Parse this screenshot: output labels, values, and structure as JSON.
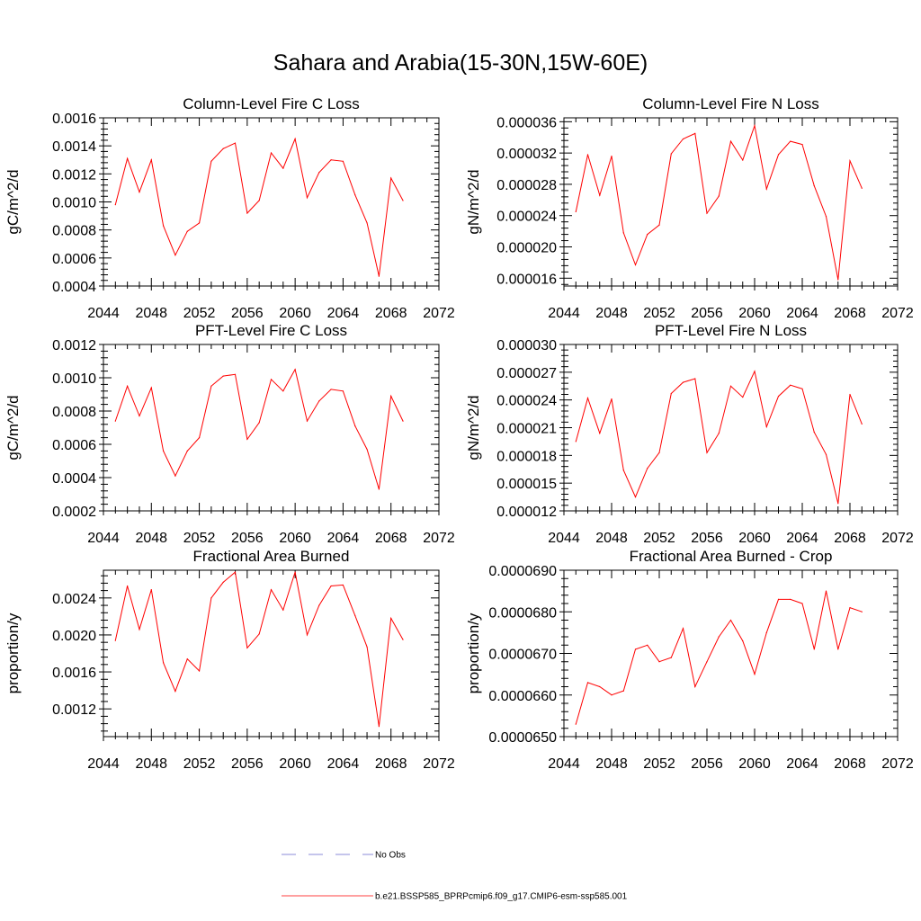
{
  "title": "Sahara and Arabia(15-30N,15W-60E)",
  "legend": {
    "entries": [
      {
        "label": "No Obs",
        "color": "#6666cc",
        "style": "dashed"
      },
      {
        "label": "b.e21.BSSP585_BPRPcmip6.f09_g17.CMIP6-esm-ssp585.001",
        "color": "#ff0000",
        "style": "solid"
      }
    ]
  },
  "chart_data": [
    {
      "type": "line",
      "title": "Column-Level Fire C Loss",
      "ylabel": "gC/m^2/d",
      "xlim": [
        2044,
        2072
      ],
      "ylim": [
        0.0004,
        0.0016
      ],
      "xticks": [
        2044,
        2048,
        2052,
        2056,
        2060,
        2064,
        2068,
        2072
      ],
      "yticks": [
        "0.0004",
        "0.0006",
        "0.0008",
        "0.0010",
        "0.0012",
        "0.0014",
        "0.0016"
      ],
      "series": [
        {
          "name": "b.e21.BSSP585_BPRPcmip6.f09_g17.CMIP6-esm-ssp585.001",
          "color": "#ff0000",
          "x": [
            2045,
            2046,
            2047,
            2048,
            2049,
            2050,
            2051,
            2052,
            2053,
            2054,
            2055,
            2056,
            2057,
            2058,
            2059,
            2060,
            2061,
            2062,
            2063,
            2064,
            2065,
            2066,
            2067,
            2068,
            2069
          ],
          "y": [
            0.00098,
            0.00131,
            0.00107,
            0.0013,
            0.00083,
            0.00062,
            0.00079,
            0.00085,
            0.00129,
            0.00138,
            0.00142,
            0.00092,
            0.00101,
            0.00135,
            0.00124,
            0.00145,
            0.00103,
            0.00121,
            0.0013,
            0.00129,
            0.00105,
            0.00085,
            0.00047,
            0.00117,
            0.00101
          ]
        }
      ]
    },
    {
      "type": "line",
      "title": "Column-Level Fire N Loss",
      "ylabel": "gN/m^2/d",
      "xlim": [
        2044,
        2072
      ],
      "ylim": [
        1.5e-05,
        3.65e-05
      ],
      "xticks": [
        2044,
        2048,
        2052,
        2056,
        2060,
        2064,
        2068,
        2072
      ],
      "yticks": [
        "0.000016",
        "0.000020",
        "0.000024",
        "0.000028",
        "0.000032",
        "0.000036"
      ],
      "series": [
        {
          "name": "b.e21.BSSP585_BPRPcmip6.f09_g17.CMIP6-esm-ssp585.001",
          "color": "#ff0000",
          "x": [
            2045,
            2046,
            2047,
            2048,
            2049,
            2050,
            2051,
            2052,
            2053,
            2054,
            2055,
            2056,
            2057,
            2058,
            2059,
            2060,
            2061,
            2062,
            2063,
            2064,
            2065,
            2066,
            2067,
            2068,
            2069
          ],
          "y": [
            2.45e-05,
            3.18e-05,
            2.66e-05,
            3.16e-05,
            2.18e-05,
            1.77e-05,
            2.16e-05,
            2.28e-05,
            3.19e-05,
            3.38e-05,
            3.45e-05,
            2.43e-05,
            2.65e-05,
            3.35e-05,
            3.11e-05,
            3.55e-05,
            2.74e-05,
            3.18e-05,
            3.35e-05,
            3.31e-05,
            2.78e-05,
            2.39e-05,
            1.58e-05,
            3.1e-05,
            2.75e-05
          ]
        }
      ]
    },
    {
      "type": "line",
      "title": "PFT-Level Fire C Loss",
      "ylabel": "gC/m^2/d",
      "xlim": [
        2044,
        2072
      ],
      "ylim": [
        0.0002,
        0.0012
      ],
      "xticks": [
        2044,
        2048,
        2052,
        2056,
        2060,
        2064,
        2068,
        2072
      ],
      "yticks": [
        "0.0002",
        "0.0004",
        "0.0006",
        "0.0008",
        "0.0010",
        "0.0012"
      ],
      "series": [
        {
          "name": "b.e21.BSSP585_BPRPcmip6.f09_g17.CMIP6-esm-ssp585.001",
          "color": "#ff0000",
          "x": [
            2045,
            2046,
            2047,
            2048,
            2049,
            2050,
            2051,
            2052,
            2053,
            2054,
            2055,
            2056,
            2057,
            2058,
            2059,
            2060,
            2061,
            2062,
            2063,
            2064,
            2065,
            2066,
            2067,
            2068,
            2069
          ],
          "y": [
            0.00074,
            0.00095,
            0.00077,
            0.00094,
            0.00056,
            0.00041,
            0.00056,
            0.00064,
            0.00095,
            0.00101,
            0.00102,
            0.00063,
            0.00073,
            0.00099,
            0.00092,
            0.00105,
            0.00074,
            0.00086,
            0.00093,
            0.00092,
            0.00071,
            0.00057,
            0.00033,
            0.00089,
            0.00074
          ]
        }
      ]
    },
    {
      "type": "line",
      "title": "PFT-Level Fire N Loss",
      "ylabel": "gN/m^2/d",
      "xlim": [
        2044,
        2072
      ],
      "ylim": [
        1.2e-05,
        3e-05
      ],
      "xticks": [
        2044,
        2048,
        2052,
        2056,
        2060,
        2064,
        2068,
        2072
      ],
      "yticks": [
        "0.000012",
        "0.000015",
        "0.000018",
        "0.000021",
        "0.000024",
        "0.000027",
        "0.000030"
      ],
      "series": [
        {
          "name": "b.e21.BSSP585_BPRPcmip6.f09_g17.CMIP6-esm-ssp585.001",
          "color": "#ff0000",
          "x": [
            2045,
            2046,
            2047,
            2048,
            2049,
            2050,
            2051,
            2052,
            2053,
            2054,
            2055,
            2056,
            2057,
            2058,
            2059,
            2060,
            2061,
            2062,
            2063,
            2064,
            2065,
            2066,
            2067,
            2068,
            2069
          ],
          "y": [
            1.95e-05,
            2.42e-05,
            2.04e-05,
            2.41e-05,
            1.64e-05,
            1.35e-05,
            1.66e-05,
            1.83e-05,
            2.47e-05,
            2.59e-05,
            2.63e-05,
            1.83e-05,
            2.04e-05,
            2.55e-05,
            2.43e-05,
            2.71e-05,
            2.11e-05,
            2.44e-05,
            2.56e-05,
            2.52e-05,
            2.05e-05,
            1.81e-05,
            1.28e-05,
            2.46e-05,
            2.14e-05
          ]
        }
      ]
    },
    {
      "type": "line",
      "title": "Fractional Area Burned",
      "ylabel": "proportion/y",
      "xlim": [
        2044,
        2072
      ],
      "ylim": [
        0.0009,
        0.0027
      ],
      "xticks": [
        2044,
        2048,
        2052,
        2056,
        2060,
        2064,
        2068,
        2072
      ],
      "yticks": [
        "0.0012",
        "0.0016",
        "0.0020",
        "0.0024"
      ],
      "series": [
        {
          "name": "b.e21.BSSP585_BPRPcmip6.f09_g17.CMIP6-esm-ssp585.001",
          "color": "#ff0000",
          "x": [
            2045,
            2046,
            2047,
            2048,
            2049,
            2050,
            2051,
            2052,
            2053,
            2054,
            2055,
            2056,
            2057,
            2058,
            2059,
            2060,
            2061,
            2062,
            2063,
            2064,
            2065,
            2066,
            2067,
            2068,
            2069
          ],
          "y": [
            0.00194,
            0.00253,
            0.00206,
            0.00249,
            0.0017,
            0.00139,
            0.00174,
            0.00161,
            0.0024,
            0.00257,
            0.00268,
            0.00186,
            0.00201,
            0.00249,
            0.00227,
            0.00268,
            0.002,
            0.00232,
            0.00253,
            0.00254,
            0.00221,
            0.00187,
            0.00101,
            0.00218,
            0.00195
          ]
        }
      ]
    },
    {
      "type": "line",
      "title": "Fractional Area Burned - Crop",
      "ylabel": "proportion/y",
      "xlim": [
        2044,
        2072
      ],
      "ylim": [
        6.5e-05,
        6.9e-05
      ],
      "xticks": [
        2044,
        2048,
        2052,
        2056,
        2060,
        2064,
        2068,
        2072
      ],
      "yticks": [
        "0.0000650",
        "0.0000660",
        "0.0000670",
        "0.0000680",
        "0.0000690"
      ],
      "series": [
        {
          "name": "b.e21.BSSP585_BPRPcmip6.f09_g17.CMIP6-esm-ssp585.001",
          "color": "#ff0000",
          "x": [
            2045,
            2046,
            2047,
            2048,
            2049,
            2050,
            2051,
            2052,
            2053,
            2054,
            2055,
            2056,
            2057,
            2058,
            2059,
            2060,
            2061,
            2062,
            2063,
            2064,
            2065,
            2066,
            2067,
            2068,
            2069
          ],
          "y": [
            6.53e-05,
            6.63e-05,
            6.62e-05,
            6.6e-05,
            6.61e-05,
            6.71e-05,
            6.72e-05,
            6.68e-05,
            6.69e-05,
            6.76e-05,
            6.62e-05,
            6.68e-05,
            6.74e-05,
            6.78e-05,
            6.73e-05,
            6.65e-05,
            6.75e-05,
            6.83e-05,
            6.83e-05,
            6.82e-05,
            6.71e-05,
            6.85e-05,
            6.71e-05,
            6.81e-05,
            6.8e-05
          ]
        }
      ]
    }
  ]
}
